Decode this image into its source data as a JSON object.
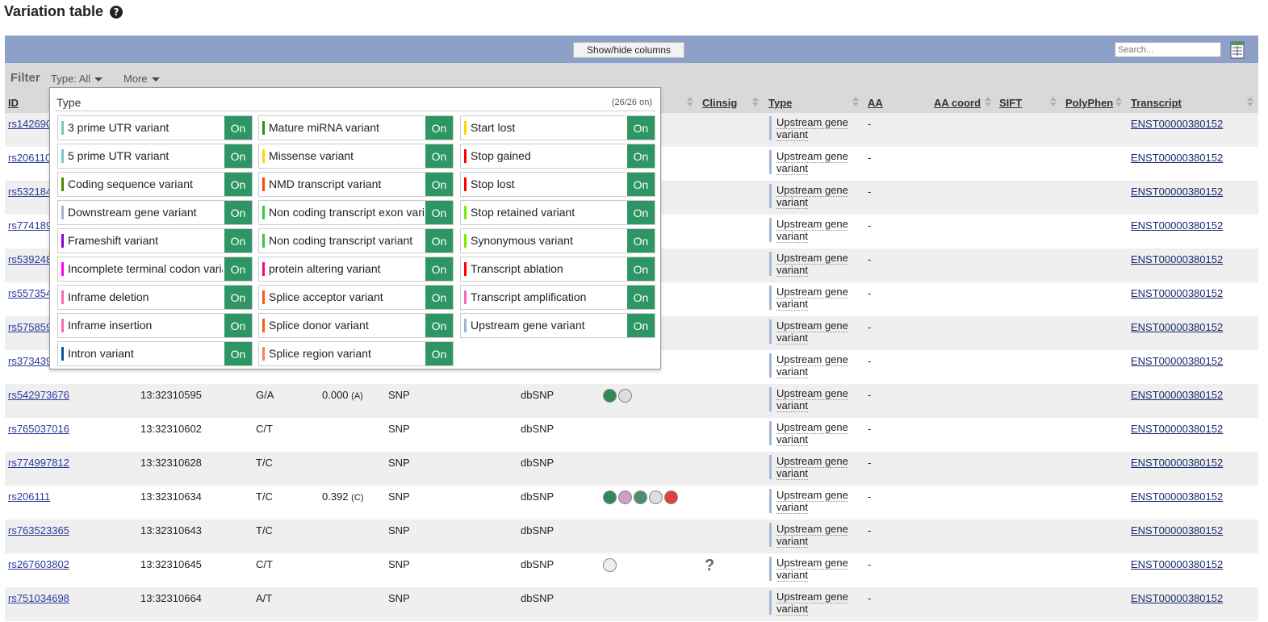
{
  "page": {
    "title": "Variation table"
  },
  "toolbar": {
    "show_hide_label": "Show/hide columns",
    "search_placeholder": "Search..."
  },
  "filter": {
    "label": "Filter",
    "type_label": "Type: All",
    "more_label": "More"
  },
  "columns": [
    "ID",
    "Clinsig",
    "Type",
    "AA",
    "AA coord",
    "SIFT",
    "PolyPhen",
    "Transcript"
  ],
  "dropdown": {
    "title": "Type",
    "count": "(26/26 on)",
    "on_label": "On",
    "options": [
      {
        "label": "3 prime UTR variant",
        "color": "#7ac5cd"
      },
      {
        "label": "5 prime UTR variant",
        "color": "#7ac5cd"
      },
      {
        "label": "Coding sequence variant",
        "color": "#458b00"
      },
      {
        "label": "Downstream gene variant",
        "color": "#a2b5cd"
      },
      {
        "label": "Frameshift variant",
        "color": "#9400d3"
      },
      {
        "label": "Incomplete terminal codon variant",
        "color": "#ff00ff"
      },
      {
        "label": "Inframe deletion",
        "color": "#ff69b4"
      },
      {
        "label": "Inframe insertion",
        "color": "#ff69b4"
      },
      {
        "label": "Intron variant",
        "color": "#02599c"
      },
      {
        "label": "Mature miRNA variant",
        "color": "#458b00"
      },
      {
        "label": "Missense variant",
        "color": "#ffd700"
      },
      {
        "label": "NMD transcript variant",
        "color": "#ff4500"
      },
      {
        "label": "Non coding transcript exon variant",
        "color": "#32cd32"
      },
      {
        "label": "Non coding transcript variant",
        "color": "#32cd32"
      },
      {
        "label": "protein altering variant",
        "color": "#ff0080"
      },
      {
        "label": "Splice acceptor variant",
        "color": "#ff581a"
      },
      {
        "label": "Splice donor variant",
        "color": "#ff581a"
      },
      {
        "label": "Splice region variant",
        "color": "#ff7f50"
      },
      {
        "label": "Start lost",
        "color": "#ffd700"
      },
      {
        "label": "Stop gained",
        "color": "#ff0000"
      },
      {
        "label": "Stop lost",
        "color": "#ff0000"
      },
      {
        "label": "Stop retained variant",
        "color": "#76ee00"
      },
      {
        "label": "Synonymous variant",
        "color": "#76ee00"
      },
      {
        "label": "Transcript ablation",
        "color": "#ff0000"
      },
      {
        "label": "Transcript amplification",
        "color": "#ff69b4"
      },
      {
        "label": "Upstream gene variant",
        "color": "#a2b5cd"
      }
    ]
  },
  "rows": [
    {
      "id": "rs142690",
      "location": "",
      "alleles": "",
      "maf": "",
      "maf_allele": "",
      "class": "",
      "source": "",
      "type": "Upstream gene variant",
      "aa": "-",
      "transcript": "ENST00000380152"
    },
    {
      "id": "rs206110",
      "location": "",
      "alleles": "",
      "maf": "",
      "maf_allele": "",
      "class": "",
      "source": "",
      "type": "Upstream gene variant",
      "aa": "-",
      "transcript": "ENST00000380152"
    },
    {
      "id": "rs532184",
      "location": "",
      "alleles": "",
      "maf": "",
      "maf_allele": "",
      "class": "",
      "source": "",
      "type": "Upstream gene variant",
      "aa": "-",
      "transcript": "ENST00000380152"
    },
    {
      "id": "rs774189",
      "location": "",
      "alleles": "",
      "maf": "",
      "maf_allele": "",
      "class": "",
      "source": "",
      "type": "Upstream gene variant",
      "aa": "-",
      "transcript": "ENST00000380152"
    },
    {
      "id": "rs539248",
      "location": "",
      "alleles": "",
      "maf": "",
      "maf_allele": "",
      "class": "",
      "source": "",
      "type": "Upstream gene variant",
      "aa": "-",
      "transcript": "ENST00000380152"
    },
    {
      "id": "rs557354",
      "location": "",
      "alleles": "",
      "maf": "",
      "maf_allele": "",
      "class": "",
      "source": "",
      "type": "Upstream gene variant",
      "aa": "-",
      "transcript": "ENST00000380152"
    },
    {
      "id": "rs575859",
      "location": "",
      "alleles": "",
      "maf": "",
      "maf_allele": "",
      "class": "",
      "source": "",
      "type": "Upstream gene variant",
      "aa": "-",
      "transcript": "ENST00000380152"
    },
    {
      "id": "rs373439",
      "location": "",
      "alleles": "",
      "maf": "",
      "maf_allele": "",
      "class": "",
      "source": "",
      "type": "Upstream gene variant",
      "aa": "-",
      "transcript": "ENST00000380152"
    },
    {
      "id": "rs542973676",
      "location": "13:32310595",
      "alleles": "G/A",
      "maf": "0.000",
      "maf_allele": "(A)",
      "class": "SNP",
      "source": "dbSNP",
      "type": "Upstream gene variant",
      "aa": "-",
      "transcript": "ENST00000380152",
      "evidence": [
        "frequency-icon",
        "1000genomes-icon"
      ]
    },
    {
      "id": "rs765037016",
      "location": "13:32310602",
      "alleles": "C/T",
      "maf": "",
      "maf_allele": "",
      "class": "SNP",
      "source": "dbSNP",
      "type": "Upstream gene variant",
      "aa": "-",
      "transcript": "ENST00000380152"
    },
    {
      "id": "rs774997812",
      "location": "13:32310628",
      "alleles": "T/C",
      "maf": "",
      "maf_allele": "",
      "class": "SNP",
      "source": "dbSNP",
      "type": "Upstream gene variant",
      "aa": "-",
      "transcript": "ENST00000380152"
    },
    {
      "id": "rs206111",
      "location": "13:32310634",
      "alleles": "T/C",
      "maf": "0.392",
      "maf_allele": "(C)",
      "class": "SNP",
      "source": "dbSNP",
      "type": "Upstream gene variant",
      "aa": "-",
      "transcript": "ENST00000380152",
      "evidence": [
        "frequency-icon",
        "pie-icon",
        "hapmap-icon",
        "1000genomes-icon",
        "cited-icon"
      ]
    },
    {
      "id": "rs763523365",
      "location": "13:32310643",
      "alleles": "T/C",
      "maf": "",
      "maf_allele": "",
      "class": "SNP",
      "source": "dbSNP",
      "type": "Upstream gene variant",
      "aa": "-",
      "transcript": "ENST00000380152"
    },
    {
      "id": "rs267603802",
      "location": "13:32310645",
      "alleles": "C/T",
      "maf": "",
      "maf_allele": "",
      "class": "SNP",
      "source": "dbSNP",
      "type": "Upstream gene variant",
      "aa": "-",
      "transcript": "ENST00000380152",
      "evidence": [
        "phenotype-icon"
      ],
      "clinsig": "?"
    },
    {
      "id": "rs751034698",
      "location": "13:32310664",
      "alleles": "A/T",
      "maf": "",
      "maf_allele": "",
      "class": "SNP",
      "source": "dbSNP",
      "type": "Upstream gene variant",
      "aa": "-",
      "transcript": "ENST00000380152"
    }
  ]
}
